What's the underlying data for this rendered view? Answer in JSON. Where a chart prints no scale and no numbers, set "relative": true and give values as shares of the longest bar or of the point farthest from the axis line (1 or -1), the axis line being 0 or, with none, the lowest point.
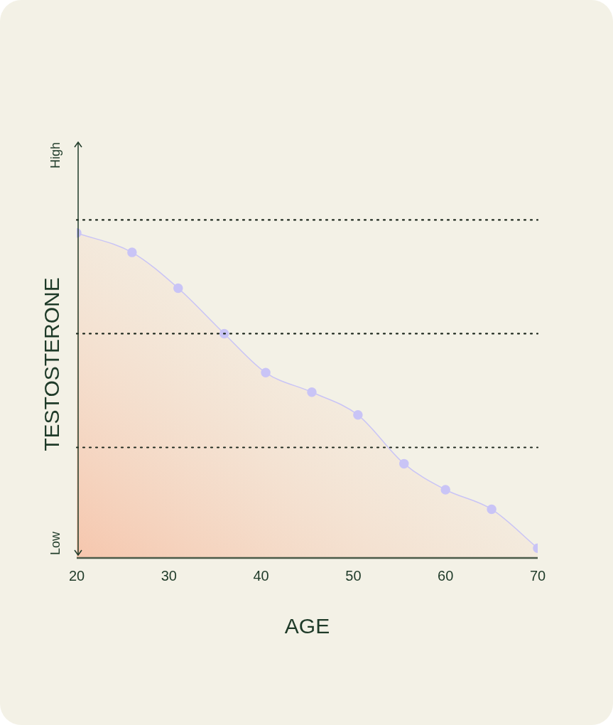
{
  "chart_data": {
    "type": "area",
    "xlabel": "AGE",
    "ylabel": "TESTOSTERONE",
    "relative": true,
    "x": [
      20,
      26,
      31,
      36,
      40.5,
      45.5,
      50.5,
      55.5,
      60,
      65,
      70
    ],
    "xlim": [
      20,
      70
    ],
    "xticks": [
      20,
      30,
      40,
      50,
      60,
      70
    ],
    "series": [
      {
        "color": "#c9c4f6",
        "values": [
          1,
          0.94,
          0.83,
          0.69,
          0.57,
          0.51,
          0.44,
          0.29,
          0.21,
          0.15,
          0.03
        ]
      }
    ],
    "ref_lines": [
      {
        "axis": "y",
        "value": 1.04,
        "color": "#1f2a1f",
        "line_style": "dotted"
      },
      {
        "axis": "y",
        "value": 0.69,
        "color": "#1f2a1f",
        "line_style": "dotted"
      },
      {
        "axis": "y",
        "value": 0.34,
        "color": "#1f2a1f",
        "line_style": "dotted"
      }
    ],
    "annotations": [
      "High",
      "Low"
    ],
    "marker": "circle",
    "grid": false,
    "legend": false
  }
}
